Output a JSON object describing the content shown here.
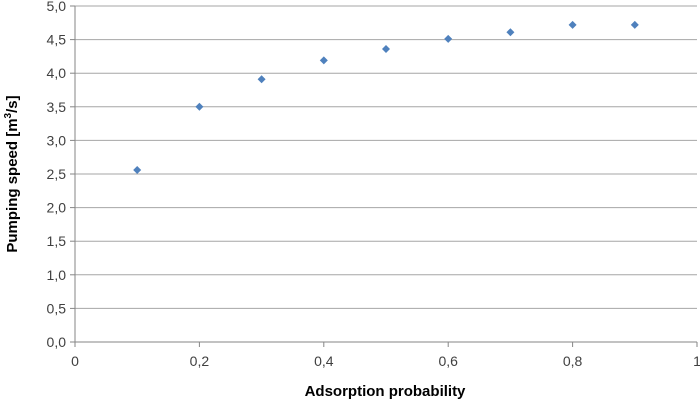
{
  "chart_data": {
    "type": "scatter",
    "xlabel": "Adsorption probability",
    "ylabel_main": "Pumping speed [m",
    "ylabel_sup": "3",
    "ylabel_tail": "/s]",
    "xlim": [
      0,
      1
    ],
    "ylim": [
      0,
      5
    ],
    "grid": "horizontal",
    "x_ticks": [
      "0",
      "0,2",
      "0,4",
      "0,6",
      "0,8",
      "1"
    ],
    "x_tick_values": [
      0,
      0.2,
      0.4,
      0.6,
      0.8,
      1
    ],
    "y_ticks": [
      "0,0",
      "0,5",
      "1,0",
      "1,5",
      "2,0",
      "2,5",
      "3,0",
      "3,5",
      "4,0",
      "4,5",
      "5,0"
    ],
    "y_tick_values": [
      0,
      0.5,
      1.0,
      1.5,
      2.0,
      2.5,
      3.0,
      3.5,
      4.0,
      4.5,
      5.0
    ],
    "series": [
      {
        "x": [
          0.1,
          0.2,
          0.3,
          0.4,
          0.5,
          0.6,
          0.7,
          0.8,
          0.9
        ],
        "y": [
          2.56,
          3.5,
          3.91,
          4.19,
          4.36,
          4.51,
          4.61,
          4.72,
          4.72
        ]
      }
    ],
    "marker_color": "#4f81bd",
    "grid_color": "#a6a6a6"
  }
}
